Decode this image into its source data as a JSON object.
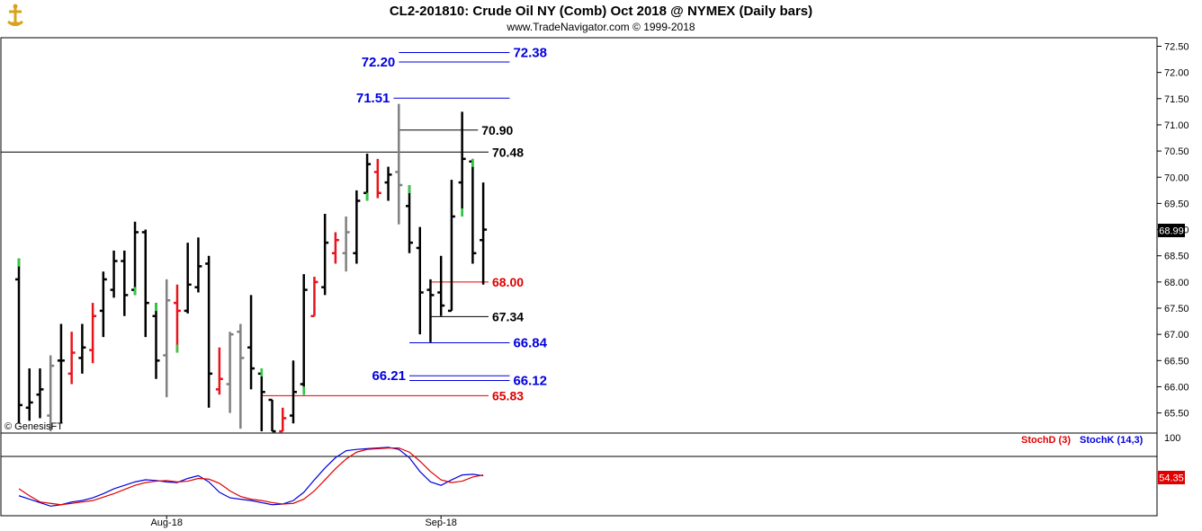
{
  "title": "CL2-201810:  Crude Oil NY (Comb) Oct 2018 @ NYMEX  (Daily bars)",
  "subtitle": "www.TradeNavigator.com © 1999-2018",
  "watermark": "© GenesisFT",
  "last_price_label": "68.99",
  "stoch_last_label": "54.35",
  "indicator_labels": {
    "stochd": "StochD (3)",
    "stochk": "StochK (14,3)"
  },
  "indicator_axis_label": "100",
  "colors": {
    "up": "#e8141b",
    "down": "#000000",
    "neutral": "#808080",
    "blue_level": "#0000e0",
    "red_level": "#e00000",
    "black_level": "#000000",
    "new_high_tick": "#2ecc40"
  },
  "chart_data": [
    {
      "type": "ohlc",
      "title": "CL2-201810:  Crude Oil NY (Comb) Oct 2018 @ NYMEX  (Daily bars)",
      "y_ticks": [
        "72.50",
        "72.00",
        "71.50",
        "71.00",
        "70.50",
        "70.00",
        "69.50",
        "69.00",
        "68.50",
        "68.00",
        "67.50",
        "67.00",
        "66.50",
        "66.00",
        "65.50"
      ],
      "ylim": [
        65.15,
        72.65
      ],
      "x_ticks": [
        {
          "label": "Aug-18",
          "index": 14
        },
        {
          "label": "Sep-18",
          "index": 40
        }
      ],
      "bars": [
        {
          "i": 0,
          "o": 68.05,
          "h": 68.45,
          "l": 65.3,
          "c": 65.65,
          "col": "down",
          "g": "high"
        },
        {
          "i": 1,
          "o": 65.6,
          "h": 66.35,
          "l": 65.35,
          "c": 65.7,
          "col": "down"
        },
        {
          "i": 2,
          "o": 65.85,
          "h": 66.35,
          "l": 65.4,
          "c": 65.95,
          "col": "down"
        },
        {
          "i": 3,
          "o": 65.45,
          "h": 66.6,
          "l": 65.15,
          "c": 66.4,
          "col": "neutral"
        },
        {
          "i": 4,
          "o": 66.5,
          "h": 67.2,
          "l": 65.3,
          "c": 66.5,
          "col": "down"
        },
        {
          "i": 5,
          "o": 66.25,
          "h": 67.05,
          "l": 66.05,
          "c": 66.65,
          "col": "up"
        },
        {
          "i": 6,
          "o": 66.55,
          "h": 67.2,
          "l": 66.25,
          "c": 66.75,
          "col": "down"
        },
        {
          "i": 7,
          "o": 66.7,
          "h": 67.6,
          "l": 66.45,
          "c": 67.35,
          "col": "up"
        },
        {
          "i": 8,
          "o": 67.45,
          "h": 68.2,
          "l": 66.95,
          "c": 68.05,
          "col": "down"
        },
        {
          "i": 9,
          "o": 67.85,
          "h": 68.6,
          "l": 67.7,
          "c": 68.4,
          "col": "down"
        },
        {
          "i": 10,
          "o": 68.4,
          "h": 68.6,
          "l": 67.35,
          "c": 67.75,
          "col": "down"
        },
        {
          "i": 11,
          "o": 67.85,
          "h": 69.15,
          "l": 67.75,
          "c": 68.95,
          "col": "down",
          "g": "low"
        },
        {
          "i": 12,
          "o": 68.95,
          "h": 69.0,
          "l": 66.95,
          "c": 67.6,
          "col": "down"
        },
        {
          "i": 13,
          "o": 67.35,
          "h": 67.6,
          "l": 66.15,
          "c": 66.5,
          "col": "down",
          "g": "high"
        },
        {
          "i": 14,
          "o": 66.6,
          "h": 68.05,
          "l": 65.8,
          "c": 67.65,
          "col": "neutral"
        },
        {
          "i": 15,
          "o": 67.6,
          "h": 67.95,
          "l": 66.65,
          "c": 67.45,
          "col": "up",
          "g": "low"
        },
        {
          "i": 16,
          "o": 67.45,
          "h": 68.75,
          "l": 67.4,
          "c": 67.95,
          "col": "down"
        },
        {
          "i": 17,
          "o": 67.9,
          "h": 68.85,
          "l": 67.8,
          "c": 68.3,
          "col": "down"
        },
        {
          "i": 18,
          "o": 68.35,
          "h": 68.5,
          "l": 65.6,
          "c": 66.25,
          "col": "down"
        },
        {
          "i": 19,
          "o": 65.95,
          "h": 66.75,
          "l": 65.85,
          "c": 66.15,
          "col": "up"
        },
        {
          "i": 20,
          "o": 66.05,
          "h": 67.05,
          "l": 65.5,
          "c": 67.0,
          "col": "neutral"
        },
        {
          "i": 21,
          "o": 67.05,
          "h": 67.2,
          "l": 65.2,
          "c": 66.55,
          "col": "neutral"
        },
        {
          "i": 22,
          "o": 66.75,
          "h": 67.75,
          "l": 65.95,
          "c": 66.35,
          "col": "down"
        },
        {
          "i": 23,
          "o": 66.25,
          "h": 66.35,
          "l": 65.15,
          "c": 65.9,
          "col": "down",
          "g": "high"
        },
        {
          "i": 24,
          "o": 65.75,
          "h": 65.75,
          "l": 65.15,
          "c": 65.15,
          "col": "down"
        },
        {
          "i": 25,
          "o": 65.15,
          "h": 65.6,
          "l": 65.15,
          "c": 65.4,
          "col": "up"
        },
        {
          "i": 26,
          "o": 65.45,
          "h": 66.5,
          "l": 65.3,
          "c": 65.9,
          "col": "down"
        },
        {
          "i": 27,
          "o": 66.05,
          "h": 68.15,
          "l": 65.85,
          "c": 67.85,
          "col": "down",
          "g": "low"
        },
        {
          "i": 28,
          "o": 67.35,
          "h": 68.1,
          "l": 67.35,
          "c": 68.0,
          "col": "up"
        },
        {
          "i": 29,
          "o": 67.9,
          "h": 69.3,
          "l": 67.75,
          "c": 68.75,
          "col": "down"
        },
        {
          "i": 30,
          "o": 68.55,
          "h": 68.95,
          "l": 68.35,
          "c": 68.8,
          "col": "up"
        },
        {
          "i": 31,
          "o": 68.55,
          "h": 69.25,
          "l": 68.2,
          "c": 68.95,
          "col": "neutral"
        },
        {
          "i": 32,
          "o": 68.55,
          "h": 69.75,
          "l": 68.35,
          "c": 69.55,
          "col": "down"
        },
        {
          "i": 33,
          "o": 69.7,
          "h": 70.45,
          "l": 69.55,
          "c": 70.25,
          "col": "down",
          "g": "low"
        },
        {
          "i": 34,
          "o": 70.1,
          "h": 70.35,
          "l": 69.6,
          "c": 69.7,
          "col": "up"
        },
        {
          "i": 35,
          "o": 69.9,
          "h": 70.2,
          "l": 69.55,
          "c": 70.05,
          "col": "down"
        },
        {
          "i": 36,
          "o": 70.1,
          "h": 71.4,
          "l": 69.1,
          "c": 69.85,
          "col": "neutral"
        },
        {
          "i": 37,
          "o": 69.45,
          "h": 69.85,
          "l": 68.55,
          "c": 68.75,
          "col": "down",
          "g": "high"
        },
        {
          "i": 38,
          "o": 68.65,
          "h": 69.05,
          "l": 67.0,
          "c": 67.8,
          "col": "down"
        },
        {
          "i": 39,
          "o": 67.85,
          "h": 68.05,
          "l": 66.85,
          "c": 67.75,
          "col": "down"
        },
        {
          "i": 40,
          "o": 67.8,
          "h": 68.5,
          "l": 67.35,
          "c": 67.55,
          "col": "down"
        },
        {
          "i": 41,
          "o": 67.45,
          "h": 69.95,
          "l": 67.45,
          "c": 69.25,
          "col": "down"
        },
        {
          "i": 42,
          "o": 69.9,
          "h": 71.25,
          "l": 69.25,
          "c": 70.35,
          "col": "down",
          "g": "low"
        },
        {
          "i": 43,
          "o": 70.3,
          "h": 70.35,
          "l": 68.35,
          "c": 68.55,
          "col": "down",
          "g": "high"
        },
        {
          "i": 44,
          "o": 68.8,
          "h": 69.9,
          "l": 67.95,
          "c": 69.0,
          "col": "down"
        }
      ],
      "levels": [
        {
          "value": 72.38,
          "label": "72.38",
          "color": "blue",
          "from": 36,
          "to": 46.5,
          "label_side": "right"
        },
        {
          "value": 72.2,
          "label": "72.20",
          "color": "blue",
          "from": 36,
          "to": 46.5,
          "label_side": "left"
        },
        {
          "value": 71.51,
          "label": "71.51",
          "color": "blue",
          "from": 35.5,
          "to": 46.5,
          "label_side": "left"
        },
        {
          "value": 70.9,
          "label": "70.90",
          "color": "black",
          "from": 36,
          "to": 43.5,
          "label_side": "right"
        },
        {
          "value": 70.48,
          "label": "70.48",
          "color": "black",
          "from": -1,
          "to": 44.5,
          "label_side": "right"
        },
        {
          "value": 68.0,
          "label": "68.00",
          "color": "red",
          "from": 39,
          "to": 44.5,
          "label_side": "right"
        },
        {
          "value": 67.34,
          "label": "67.34",
          "color": "black",
          "from": 39,
          "to": 44.5,
          "label_side": "right"
        },
        {
          "value": 66.84,
          "label": "66.84",
          "color": "blue",
          "from": 37,
          "to": 46.5,
          "label_side": "right"
        },
        {
          "value": 66.21,
          "label": "66.21",
          "color": "blue",
          "from": 37,
          "to": 46.5,
          "label_side": "left"
        },
        {
          "value": 66.12,
          "label": "66.12",
          "color": "blue",
          "from": 37,
          "to": 46.5,
          "label_side": "right"
        },
        {
          "value": 65.83,
          "label": "65.83",
          "color": "red",
          "from": 23,
          "to": 44.5,
          "label_side": "right"
        }
      ]
    },
    {
      "type": "line",
      "name": "Stochastic",
      "ylim": [
        0,
        100
      ],
      "series": [
        {
          "name": "StochK (14,3)",
          "color": "#0000e0",
          "values": [
            25,
            20,
            15,
            10,
            12,
            16,
            18,
            22,
            28,
            35,
            40,
            45,
            48,
            47,
            45,
            44,
            50,
            54,
            45,
            30,
            22,
            20,
            18,
            15,
            12,
            13,
            18,
            30,
            48,
            65,
            80,
            90,
            92,
            93,
            94,
            95,
            92,
            80,
            60,
            45,
            40,
            48,
            55,
            56,
            54
          ]
        },
        {
          "name": "StochD (3)",
          "color": "#e00000",
          "values": [
            35,
            25,
            16,
            14,
            12,
            14,
            16,
            18,
            23,
            28,
            34,
            40,
            44,
            46,
            47,
            45,
            46,
            50,
            49,
            43,
            32,
            24,
            20,
            18,
            15,
            13,
            14,
            20,
            32,
            48,
            64,
            78,
            88,
            92,
            93,
            94,
            94,
            88,
            75,
            60,
            48,
            44,
            46,
            52,
            55
          ]
        }
      ]
    }
  ]
}
